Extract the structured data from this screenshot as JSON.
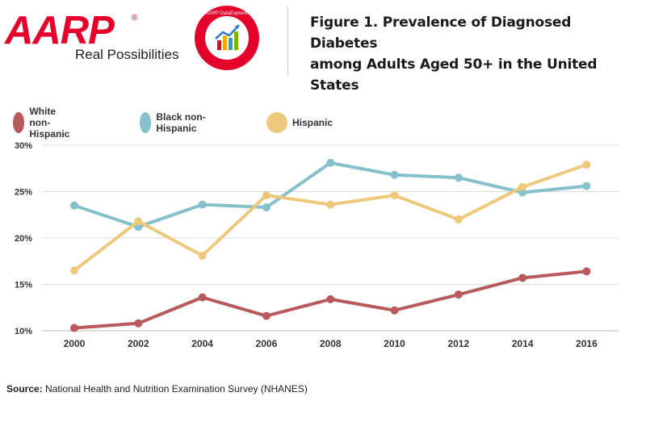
{
  "header": {
    "logo_text": "AARP",
    "logo_registered": "®",
    "logo_tagline": "Real Possibilities",
    "badge_text": "AARP DataExplorer",
    "title_line1": "Figure 1. Prevalence of Diagnosed Diabetes",
    "title_line2": "among Adults Aged 50+ in the United States"
  },
  "colors": {
    "brand_red": "#e4002b",
    "white": "#b85a5c",
    "black": "#85c0cb",
    "hispanic": "#ecc97c",
    "grid": "#dddddd"
  },
  "chart_data": {
    "type": "line",
    "title": "Figure 1. Prevalence of Diagnosed Diabetes among Adults Aged 50+ in the United States",
    "x": [
      2000,
      2002,
      2004,
      2006,
      2008,
      2010,
      2012,
      2014,
      2016
    ],
    "ylim": [
      10,
      30
    ],
    "yticks": [
      10,
      15,
      20,
      25,
      30
    ],
    "ytick_labels": [
      "10%",
      "15%",
      "20%",
      "25%",
      "30%"
    ],
    "xtick_labels": [
      "2000",
      "2002",
      "2004",
      "2006",
      "2008",
      "2010",
      "2012",
      "2014",
      "2016"
    ],
    "grid": true,
    "legend_position": "top-left",
    "series": [
      {
        "name": "White non-Hispanic",
        "color": "#b85a5c",
        "values": [
          10.3,
          10.8,
          13.6,
          11.6,
          13.4,
          12.2,
          13.9,
          15.7,
          16.4
        ]
      },
      {
        "name": "Black non-Hispanic",
        "color": "#85c0cb",
        "values": [
          23.5,
          21.2,
          23.6,
          23.3,
          28.1,
          26.8,
          26.5,
          24.9,
          25.6
        ]
      },
      {
        "name": "Hispanic",
        "color": "#ecc97c",
        "values": [
          16.5,
          21.8,
          18.1,
          24.6,
          23.6,
          24.6,
          22.0,
          25.5,
          27.9
        ]
      }
    ]
  },
  "footer": {
    "source_label": "Source:",
    "source_text": " National Health and Nutrition Examination Survey (NHANES)"
  }
}
